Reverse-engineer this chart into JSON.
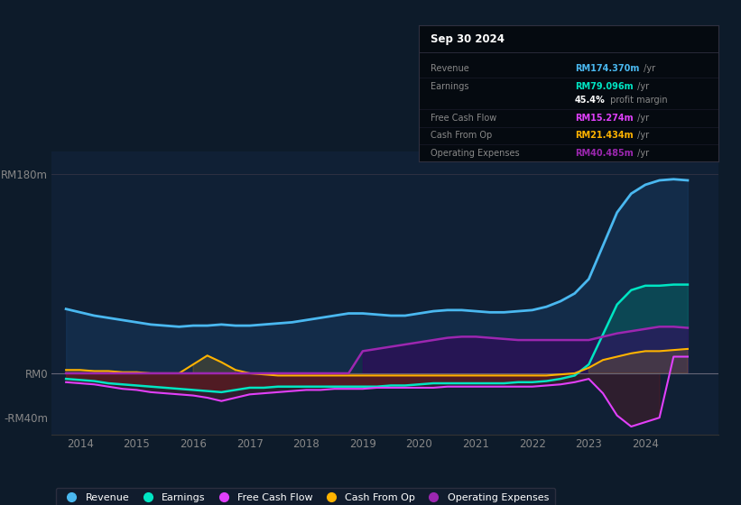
{
  "bg_color": "#0d1b2a",
  "plot_bg_color": "#102035",
  "title_box": {
    "date": "Sep 30 2024",
    "rows": [
      {
        "label": "Revenue",
        "value": "RM174.370m",
        "unit": " /yr",
        "color": "#4ab8f0"
      },
      {
        "label": "Earnings",
        "value": "RM79.096m",
        "unit": " /yr",
        "color": "#00e5c3"
      },
      {
        "label": "",
        "value": "45.4%",
        "unit": " profit margin",
        "color": "#ffffff"
      },
      {
        "label": "Free Cash Flow",
        "value": "RM15.274m",
        "unit": " /yr",
        "color": "#e040fb"
      },
      {
        "label": "Cash From Op",
        "value": "RM21.434m",
        "unit": " /yr",
        "color": "#ffb300"
      },
      {
        "label": "Operating Expenses",
        "value": "RM40.485m",
        "unit": " /yr",
        "color": "#9c27b0"
      }
    ]
  },
  "ylim": [
    -55,
    200
  ],
  "yticks": [
    -40,
    0,
    180
  ],
  "ytick_labels": [
    "-RM40m",
    "RM0",
    "RM180m"
  ],
  "xlim": [
    2013.5,
    2025.3
  ],
  "xticks": [
    2014,
    2015,
    2016,
    2017,
    2018,
    2019,
    2020,
    2021,
    2022,
    2023,
    2024
  ],
  "legend_items": [
    {
      "label": "Revenue",
      "color": "#4ab8f0",
      "marker": "o"
    },
    {
      "label": "Earnings",
      "color": "#00e5c3",
      "marker": "o"
    },
    {
      "label": "Free Cash Flow",
      "color": "#e040fb",
      "marker": "o"
    },
    {
      "label": "Cash From Op",
      "color": "#ffb300",
      "marker": "o"
    },
    {
      "label": "Operating Expenses",
      "color": "#9c27b0",
      "marker": "o"
    }
  ],
  "series": {
    "years": [
      2013.75,
      2014.0,
      2014.25,
      2014.5,
      2014.75,
      2015.0,
      2015.25,
      2015.5,
      2015.75,
      2016.0,
      2016.25,
      2016.5,
      2016.75,
      2017.0,
      2017.25,
      2017.5,
      2017.75,
      2018.0,
      2018.25,
      2018.5,
      2018.75,
      2019.0,
      2019.25,
      2019.5,
      2019.75,
      2020.0,
      2020.25,
      2020.5,
      2020.75,
      2021.0,
      2021.25,
      2021.5,
      2021.75,
      2022.0,
      2022.25,
      2022.5,
      2022.75,
      2023.0,
      2023.25,
      2023.5,
      2023.75,
      2024.0,
      2024.25,
      2024.5,
      2024.75
    ],
    "revenue": [
      58,
      55,
      52,
      50,
      48,
      46,
      44,
      43,
      42,
      43,
      43,
      44,
      43,
      43,
      44,
      45,
      46,
      48,
      50,
      52,
      54,
      54,
      53,
      52,
      52,
      54,
      56,
      57,
      57,
      56,
      55,
      55,
      56,
      57,
      60,
      65,
      72,
      85,
      115,
      145,
      162,
      170,
      174,
      175,
      174
    ],
    "earnings": [
      -5,
      -6,
      -7,
      -9,
      -10,
      -11,
      -12,
      -13,
      -14,
      -15,
      -16,
      -17,
      -15,
      -13,
      -13,
      -12,
      -12,
      -12,
      -12,
      -12,
      -12,
      -12,
      -12,
      -11,
      -11,
      -10,
      -9,
      -9,
      -9,
      -9,
      -9,
      -9,
      -8,
      -8,
      -7,
      -5,
      -2,
      8,
      35,
      62,
      75,
      79,
      79,
      80,
      80
    ],
    "free_cash_flow": [
      -8,
      -9,
      -10,
      -12,
      -14,
      -15,
      -17,
      -18,
      -19,
      -20,
      -22,
      -25,
      -22,
      -19,
      -18,
      -17,
      -16,
      -15,
      -15,
      -14,
      -14,
      -14,
      -13,
      -13,
      -13,
      -13,
      -13,
      -12,
      -12,
      -12,
      -12,
      -12,
      -12,
      -12,
      -11,
      -10,
      -8,
      -5,
      -18,
      -38,
      -48,
      -44,
      -40,
      15,
      15
    ],
    "cash_from_op": [
      3,
      3,
      2,
      2,
      1,
      1,
      0,
      0,
      0,
      8,
      16,
      10,
      3,
      0,
      -1,
      -2,
      -2,
      -2,
      -2,
      -2,
      -2,
      -2,
      -2,
      -2,
      -2,
      -2,
      -2,
      -2,
      -2,
      -2,
      -2,
      -2,
      -2,
      -2,
      -2,
      -1,
      0,
      5,
      12,
      15,
      18,
      20,
      20,
      21,
      22
    ],
    "operating_expenses": [
      0,
      0,
      0,
      0,
      0,
      0,
      0,
      0,
      0,
      0,
      0,
      0,
      0,
      0,
      0,
      0,
      0,
      0,
      0,
      0,
      0,
      20,
      22,
      24,
      26,
      28,
      30,
      32,
      33,
      33,
      32,
      31,
      30,
      30,
      30,
      30,
      30,
      30,
      33,
      36,
      38,
      40,
      42,
      42,
      41
    ]
  }
}
